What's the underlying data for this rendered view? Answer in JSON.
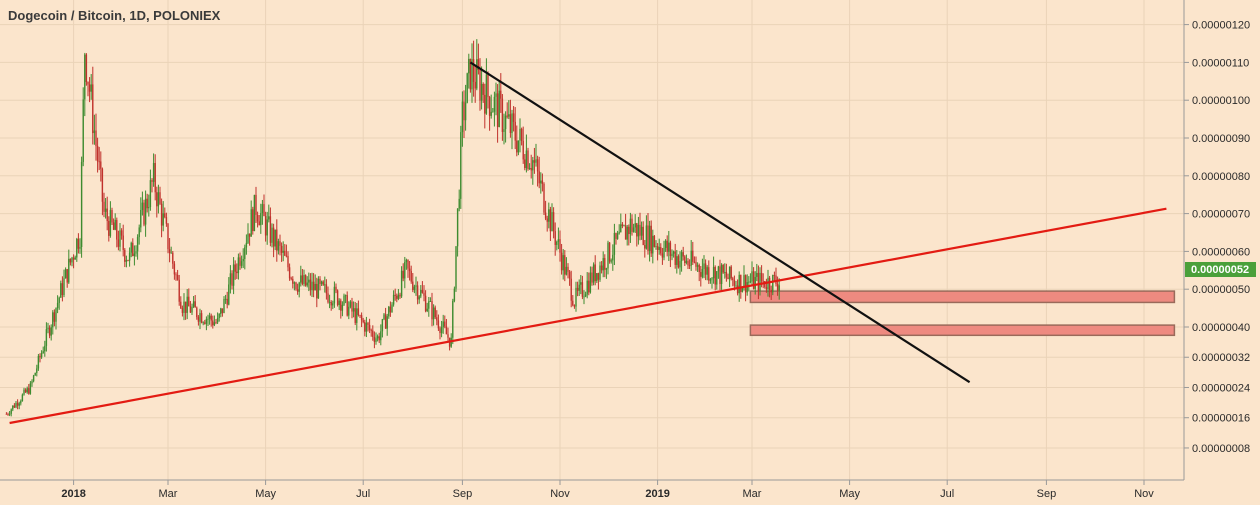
{
  "chart_data": {
    "type": "candlestick",
    "title": "Dogecoin / Bitcoin, 1D, POLONIEX",
    "y_ticks": [
      "0.00000120",
      "0.00000110",
      "0.00000100",
      "0.00000090",
      "0.00000080",
      "0.00000070",
      "0.00000060",
      "0.00000050",
      "0.00000040",
      "0.00000032",
      "0.00000024",
      "0.00000016",
      "0.00000008"
    ],
    "x_ticks": [
      "2018",
      "Mar",
      "May",
      "Jul",
      "Sep",
      "Nov",
      "2019",
      "Mar",
      "May",
      "Jul",
      "Sep",
      "Nov"
    ],
    "x_ticks_bold": [
      "2018",
      "2019"
    ],
    "current_price": "0.00000052",
    "current_price_color": "#4aa03a",
    "up_color": "#3d8b2f",
    "down_color": "#c0312b",
    "series_keypoints": [
      {
        "date": "2017-11-20",
        "close": 1.7e-07
      },
      {
        "date": "2017-12-05",
        "close": 2.4e-07
      },
      {
        "date": "2017-12-20",
        "close": 4.4e-07
      },
      {
        "date": "2018-01-05",
        "close": 6.5e-07
      },
      {
        "date": "2018-01-08",
        "close": 1.14e-06
      },
      {
        "date": "2018-01-20",
        "close": 7e-07
      },
      {
        "date": "2018-02-05",
        "close": 5.8e-07
      },
      {
        "date": "2018-02-20",
        "close": 7.9e-07
      },
      {
        "date": "2018-03-10",
        "close": 4.6e-07
      },
      {
        "date": "2018-04-01",
        "close": 4.1e-07
      },
      {
        "date": "2018-04-25",
        "close": 7.2e-07
      },
      {
        "date": "2018-05-20",
        "close": 5.2e-07
      },
      {
        "date": "2018-06-15",
        "close": 4.8e-07
      },
      {
        "date": "2018-07-10",
        "close": 3.7e-07
      },
      {
        "date": "2018-07-28",
        "close": 5.5e-07
      },
      {
        "date": "2018-08-25",
        "close": 3.6e-07
      },
      {
        "date": "2018-09-01",
        "close": 9.5e-07
      },
      {
        "date": "2018-09-06",
        "close": 1.08e-06
      },
      {
        "date": "2018-10-15",
        "close": 8.4e-07
      },
      {
        "date": "2018-11-10",
        "close": 4.7e-07
      },
      {
        "date": "2018-12-15",
        "close": 6.7e-07
      },
      {
        "date": "2019-01-15",
        "close": 5.8e-07
      },
      {
        "date": "2019-02-20",
        "close": 5.2e-07
      },
      {
        "date": "2019-03-18",
        "close": 5.2e-07
      }
    ],
    "trendlines": [
      {
        "name": "support",
        "color": "#e31b12",
        "from": {
          "date": "2017-11-22",
          "value": 1.46e-07
        },
        "to": {
          "date": "2019-11-15",
          "value": 7.13e-07
        }
      },
      {
        "name": "resistance",
        "color": "#111111",
        "from": {
          "date": "2018-09-06",
          "value": 1.1e-06
        },
        "to": {
          "date": "2019-07-15",
          "value": 2.54e-07
        }
      }
    ],
    "zones": [
      {
        "color": "#ee8a80",
        "from_date": "2019-02-28",
        "to_date": "2019-11-20",
        "low": 4.65e-07,
        "high": 4.95e-07
      },
      {
        "color": "#ee8a80",
        "from_date": "2019-02-28",
        "to_date": "2019-11-20",
        "low": 3.78e-07,
        "high": 4.05e-07
      }
    ],
    "grid": true
  }
}
